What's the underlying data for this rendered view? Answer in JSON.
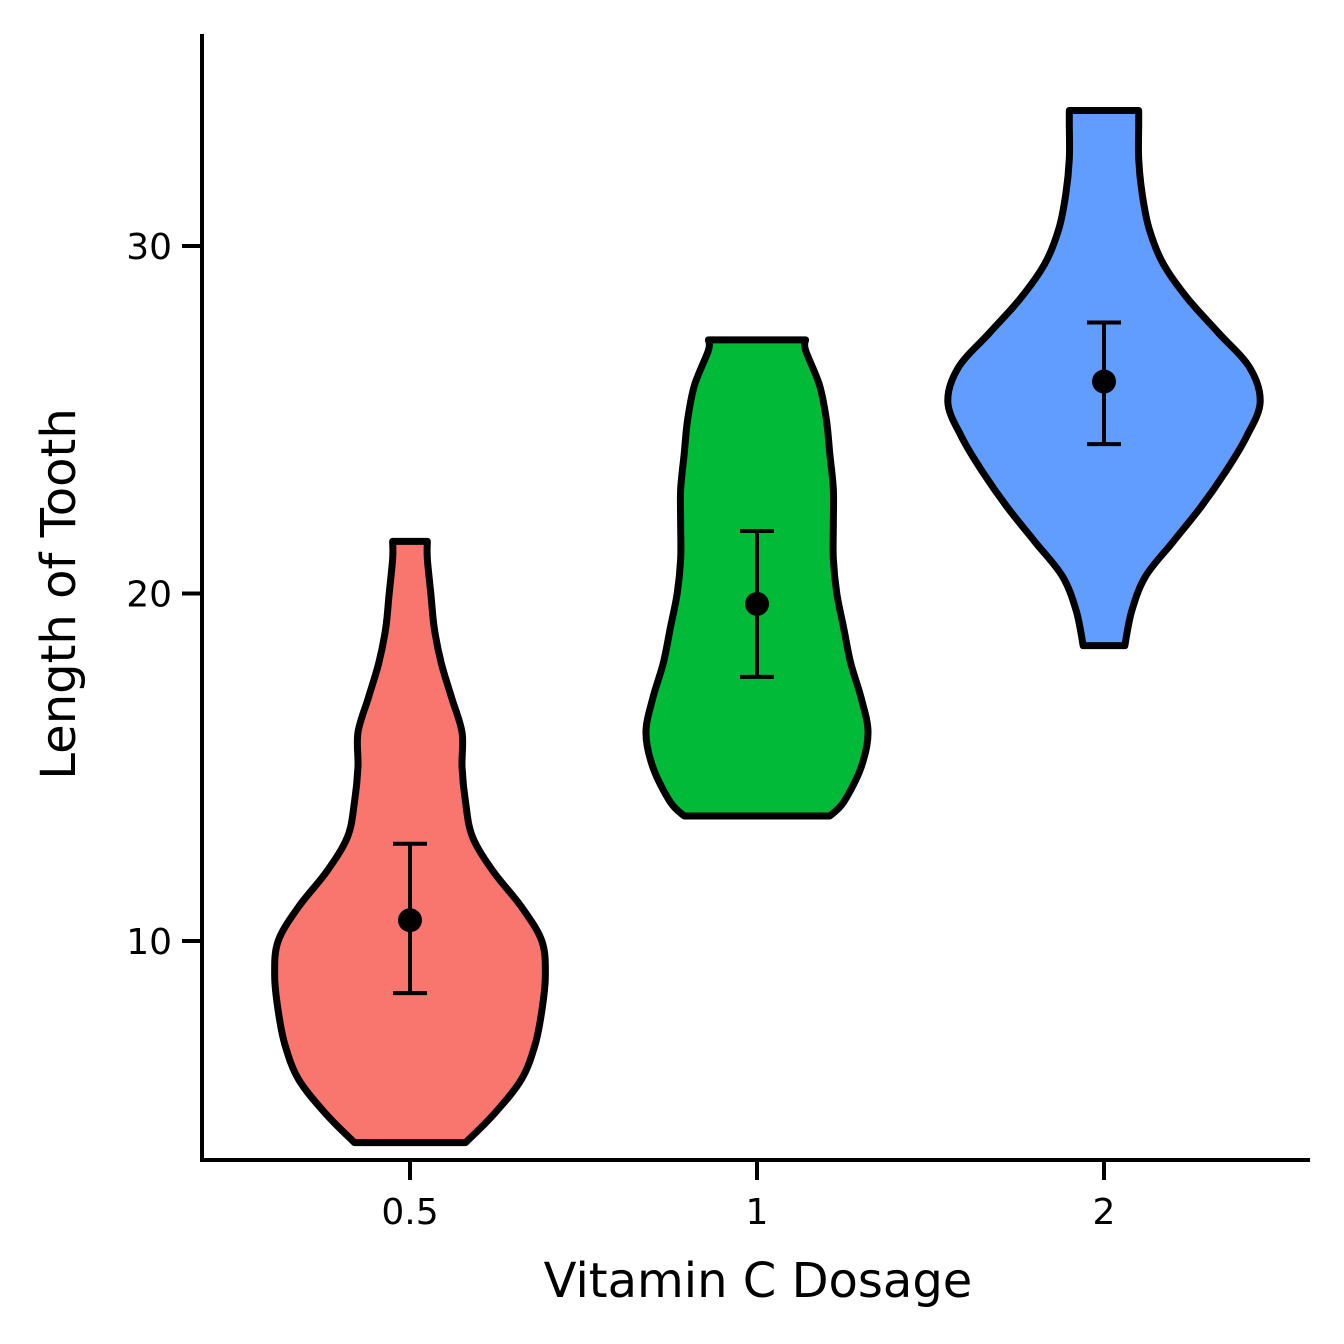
{
  "chart_data": {
    "type": "violin",
    "title": "",
    "xlabel": "Vitamin C Dosage",
    "ylabel": "Length of Tooth",
    "categories": [
      "0.5",
      "1",
      "2"
    ],
    "y_ticks": [
      10,
      20,
      30
    ],
    "y_tick_labels": [
      "10",
      "20",
      "30"
    ],
    "ylim": [
      3.7,
      36.1
    ],
    "grid": false,
    "legend": "none",
    "colors": [
      "#F8766D",
      "#00BA38",
      "#619CFF"
    ],
    "summary": [
      {
        "category": "0.5",
        "mean": 10.6,
        "lower": 8.5,
        "upper": 12.8,
        "min": 4.2,
        "max": 21.5
      },
      {
        "category": "1",
        "mean": 19.7,
        "lower": 17.6,
        "upper": 21.8,
        "min": 13.6,
        "max": 27.3
      },
      {
        "category": "2",
        "mean": 26.1,
        "lower": 24.3,
        "upper": 27.8,
        "min": 18.5,
        "max": 33.9
      }
    ],
    "density": [
      {
        "category": "0.5",
        "profile": [
          {
            "y": 4.2,
            "half_width": 0.16
          },
          {
            "y": 5.0,
            "half_width": 0.24
          },
          {
            "y": 6.0,
            "half_width": 0.32
          },
          {
            "y": 7.0,
            "half_width": 0.36
          },
          {
            "y": 8.0,
            "half_width": 0.38
          },
          {
            "y": 9.0,
            "half_width": 0.39
          },
          {
            "y": 10.0,
            "half_width": 0.38
          },
          {
            "y": 11.0,
            "half_width": 0.32
          },
          {
            "y": 12.0,
            "half_width": 0.24
          },
          {
            "y": 13.0,
            "half_width": 0.18
          },
          {
            "y": 14.0,
            "half_width": 0.16
          },
          {
            "y": 15.0,
            "half_width": 0.15
          },
          {
            "y": 16.0,
            "half_width": 0.15
          },
          {
            "y": 17.0,
            "half_width": 0.12
          },
          {
            "y": 18.0,
            "half_width": 0.09
          },
          {
            "y": 19.0,
            "half_width": 0.07
          },
          {
            "y": 20.0,
            "half_width": 0.06
          },
          {
            "y": 21.0,
            "half_width": 0.05
          },
          {
            "y": 21.5,
            "half_width": 0.05
          }
        ]
      },
      {
        "category": "1",
        "profile": [
          {
            "y": 13.6,
            "half_width": 0.21
          },
          {
            "y": 14.0,
            "half_width": 0.25
          },
          {
            "y": 15.0,
            "half_width": 0.3
          },
          {
            "y": 16.0,
            "half_width": 0.32
          },
          {
            "y": 17.0,
            "half_width": 0.3
          },
          {
            "y": 18.0,
            "half_width": 0.27
          },
          {
            "y": 19.0,
            "half_width": 0.25
          },
          {
            "y": 20.0,
            "half_width": 0.23
          },
          {
            "y": 21.0,
            "half_width": 0.22
          },
          {
            "y": 22.0,
            "half_width": 0.22
          },
          {
            "y": 23.0,
            "half_width": 0.22
          },
          {
            "y": 24.0,
            "half_width": 0.21
          },
          {
            "y": 25.0,
            "half_width": 0.2
          },
          {
            "y": 26.0,
            "half_width": 0.18
          },
          {
            "y": 27.0,
            "half_width": 0.14
          },
          {
            "y": 27.3,
            "half_width": 0.14
          }
        ]
      },
      {
        "category": "2",
        "profile": [
          {
            "y": 18.5,
            "half_width": 0.06
          },
          {
            "y": 19.5,
            "half_width": 0.08
          },
          {
            "y": 20.5,
            "half_width": 0.12
          },
          {
            "y": 21.5,
            "half_width": 0.2
          },
          {
            "y": 22.5,
            "half_width": 0.28
          },
          {
            "y": 23.5,
            "half_width": 0.35
          },
          {
            "y": 24.5,
            "half_width": 0.41
          },
          {
            "y": 25.5,
            "half_width": 0.45
          },
          {
            "y": 26.5,
            "half_width": 0.42
          },
          {
            "y": 27.5,
            "half_width": 0.33
          },
          {
            "y": 28.5,
            "half_width": 0.24
          },
          {
            "y": 29.5,
            "half_width": 0.17
          },
          {
            "y": 30.5,
            "half_width": 0.13
          },
          {
            "y": 31.5,
            "half_width": 0.11
          },
          {
            "y": 32.5,
            "half_width": 0.1
          },
          {
            "y": 33.5,
            "half_width": 0.1
          },
          {
            "y": 33.9,
            "half_width": 0.1
          }
        ]
      }
    ]
  }
}
